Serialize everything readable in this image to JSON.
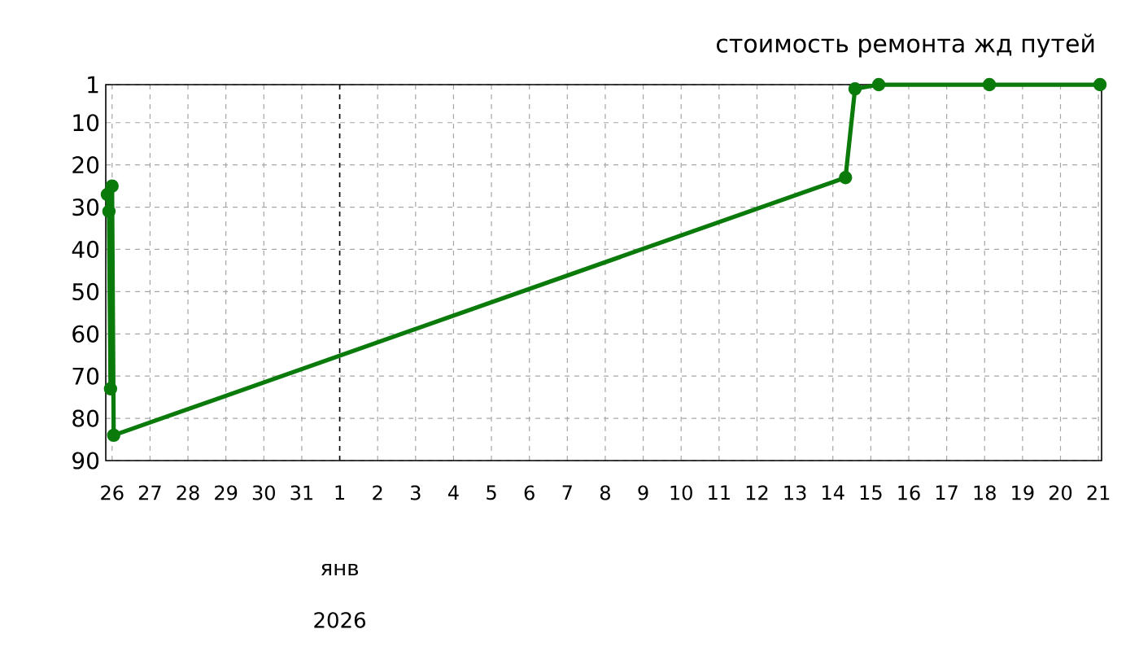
{
  "chart_data": {
    "type": "line",
    "title": "стоимость ремонта жд путей",
    "x": [
      "2025-12-25T21:00",
      "2025-12-25T22:00",
      "2025-12-25T23:00",
      "2025-12-26T00:00",
      "2025-12-26T01:00",
      "2026-01-14T08:00",
      "2026-01-14T14:00",
      "2026-01-15T05:00",
      "2026-01-18T03:00",
      "2026-01-21T01:00"
    ],
    "series": [
      {
        "color": "#0a7a0a",
        "values": [
          27,
          31,
          73,
          25,
          84,
          23,
          2,
          1,
          1,
          1
        ]
      }
    ],
    "xlim": [
      "2025-12-25T20:00",
      "2026-01-21T02:00"
    ],
    "xticks": [
      {
        "value": "2025-12-26",
        "label": "26"
      },
      {
        "value": "2025-12-27",
        "label": "27"
      },
      {
        "value": "2025-12-28",
        "label": "28"
      },
      {
        "value": "2025-12-29",
        "label": "29"
      },
      {
        "value": "2025-12-30",
        "label": "30"
      },
      {
        "value": "2025-12-31",
        "label": "31"
      },
      {
        "value": "2026-01-01",
        "label": "1"
      },
      {
        "value": "2026-01-02",
        "label": "2"
      },
      {
        "value": "2026-01-03",
        "label": "3"
      },
      {
        "value": "2026-01-04",
        "label": "4"
      },
      {
        "value": "2026-01-05",
        "label": "5"
      },
      {
        "value": "2026-01-06",
        "label": "6"
      },
      {
        "value": "2026-01-07",
        "label": "7"
      },
      {
        "value": "2026-01-08",
        "label": "8"
      },
      {
        "value": "2026-01-09",
        "label": "9"
      },
      {
        "value": "2026-01-10",
        "label": "10"
      },
      {
        "value": "2026-01-11",
        "label": "11"
      },
      {
        "value": "2026-01-12",
        "label": "12"
      },
      {
        "value": "2026-01-13",
        "label": "13"
      },
      {
        "value": "2026-01-14",
        "label": "14"
      },
      {
        "value": "2026-01-15",
        "label": "15"
      },
      {
        "value": "2026-01-16",
        "label": "16"
      },
      {
        "value": "2026-01-17",
        "label": "17"
      },
      {
        "value": "2026-01-18",
        "label": "18"
      },
      {
        "value": "2026-01-19",
        "label": "19"
      },
      {
        "value": "2026-01-20",
        "label": "20"
      },
      {
        "value": "2026-01-21",
        "label": "21"
      }
    ],
    "ylim": [
      90,
      1
    ],
    "yticks": [
      1,
      10,
      20,
      30,
      40,
      50,
      60,
      70,
      80,
      90
    ],
    "ref_lines": [
      {
        "axis": "x",
        "value": "2026-01-01",
        "color": "#000000",
        "line_style": "dashed"
      }
    ],
    "annotations": [
      "янв",
      "2026"
    ],
    "grid": true,
    "marker": "circle",
    "line_style": "solid"
  }
}
